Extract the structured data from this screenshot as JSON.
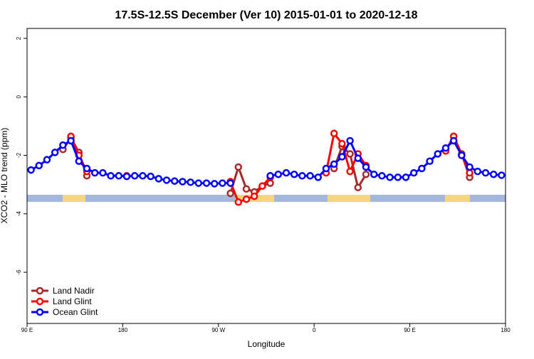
{
  "chart_data": {
    "type": "line",
    "title": "17.5S-12.5S December (Ver 10)   2015-01-01 to 2020-12-18",
    "x_label": "Longitude",
    "y_label": "XCO2 - MLO trend (ppm)",
    "x": [
      93.75,
      101.25,
      108.75,
      116.25,
      123.75,
      131.25,
      138.75,
      146.25,
      153.75,
      161.25,
      168.75,
      176.25,
      183.75,
      191.25,
      198.75,
      206.25,
      213.75,
      221.25,
      228.75,
      236.25,
      243.75,
      251.25,
      258.75,
      266.25,
      273.75,
      281.25,
      288.75,
      296.25,
      303.75,
      311.25,
      318.75,
      326.25,
      333.75,
      341.25,
      348.75,
      356.25,
      363.75,
      371.25,
      378.75,
      386.25,
      393.75,
      401.25,
      408.75,
      416.25,
      423.75,
      431.25,
      438.75,
      446.25,
      453.75,
      461.25,
      468.75,
      476.25,
      483.75,
      491.25,
      498.75,
      506.25,
      513.75,
      521.25,
      528.75,
      536.25
    ],
    "series": [
      {
        "name": "Land Nadir",
        "color": "#a52a2a",
        "values": [
          null,
          null,
          null,
          null,
          -1.8,
          -1.4,
          -1.9,
          -2.7,
          null,
          null,
          null,
          null,
          null,
          null,
          null,
          null,
          null,
          null,
          null,
          null,
          null,
          null,
          null,
          null,
          null,
          -3.3,
          -2.4,
          -3.15,
          -3.25,
          -3.05,
          -2.95,
          null,
          null,
          null,
          null,
          null,
          null,
          null,
          -2.45,
          -1.7,
          -1.95,
          -3.1,
          -2.65,
          null,
          null,
          null,
          null,
          null,
          null,
          null,
          null,
          null,
          -1.85,
          -1.35,
          -1.95,
          -2.75,
          null,
          null,
          null,
          null
        ]
      },
      {
        "name": "Land Glint",
        "color": "#ff0000",
        "values": [
          null,
          null,
          null,
          null,
          null,
          -1.35,
          -2.0,
          -2.55,
          null,
          null,
          null,
          null,
          -2.7,
          null,
          null,
          null,
          null,
          null,
          null,
          null,
          null,
          null,
          null,
          null,
          null,
          -2.9,
          -3.6,
          -3.5,
          -3.4,
          -3.05,
          -2.75,
          null,
          null,
          null,
          null,
          null,
          null,
          -2.6,
          -1.25,
          -1.6,
          -2.55,
          -1.95,
          -2.35,
          null,
          null,
          null,
          null,
          null,
          null,
          null,
          null,
          null,
          -1.85,
          -1.35,
          -2.0,
          -2.6,
          null,
          null,
          null,
          null
        ]
      },
      {
        "name": "Ocean Glint",
        "color": "#0000ff",
        "values": [
          -2.5,
          -2.35,
          -2.15,
          -1.9,
          -1.65,
          -1.5,
          -2.2,
          -2.45,
          -2.6,
          -2.6,
          -2.7,
          -2.7,
          -2.72,
          -2.7,
          -2.7,
          -2.72,
          -2.8,
          -2.85,
          -2.88,
          -2.9,
          -2.92,
          -2.95,
          -2.95,
          -2.97,
          -2.95,
          -2.95,
          null,
          null,
          null,
          null,
          -2.7,
          -2.65,
          -2.6,
          -2.65,
          -2.7,
          -2.7,
          -2.75,
          -2.45,
          -2.3,
          -2.05,
          -1.5,
          -2.1,
          -2.4,
          -2.65,
          -2.7,
          -2.75,
          -2.75,
          -2.75,
          -2.6,
          -2.45,
          -2.2,
          -1.95,
          -1.75,
          -1.5,
          -2.0,
          -2.4,
          -2.55,
          -2.6,
          -2.65,
          -2.68
        ]
      }
    ],
    "xlim": [
      90,
      540
    ],
    "xticks": [
      {
        "value": 90,
        "label": "90 E"
      },
      180,
      {
        "value": 270,
        "label": "90 W"
      },
      {
        "value": 360,
        "label": "0"
      },
      {
        "value": 450,
        "label": "90 E"
      },
      {
        "value": 540,
        "label": "180"
      }
    ],
    "ylim": [
      -7.75,
      2.34
    ],
    "yticks": [
      2,
      0,
      -2,
      -4,
      -6
    ],
    "legend": "bottom-left"
  }
}
